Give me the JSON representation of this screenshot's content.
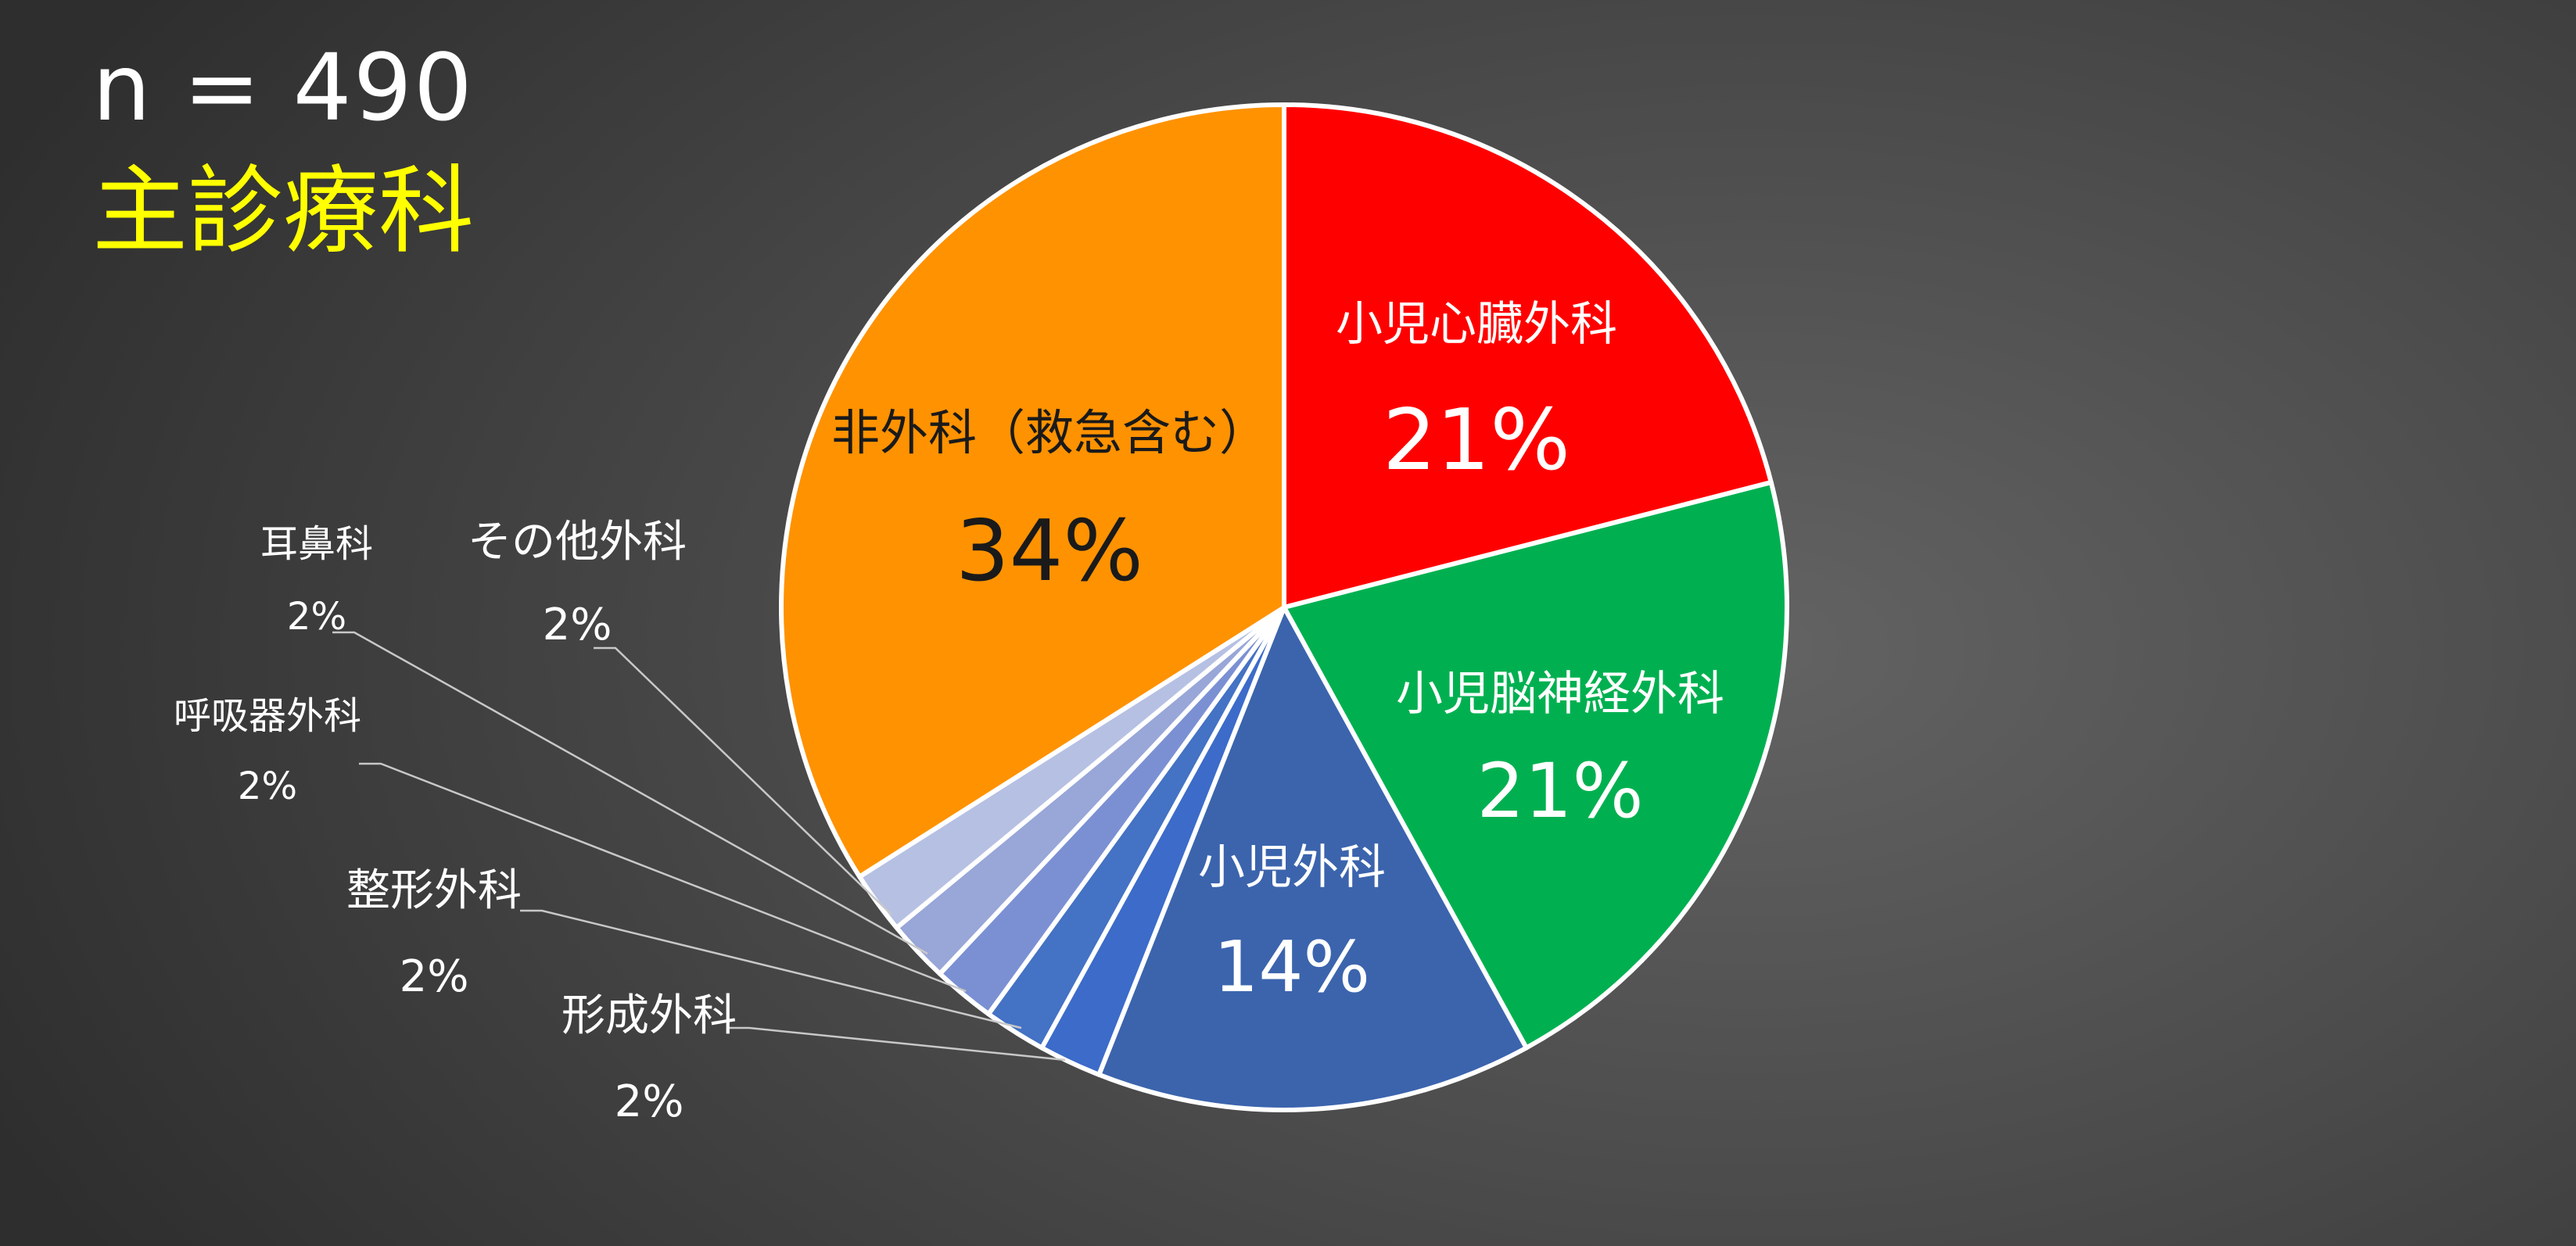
{
  "title_n": "n = 490",
  "title": "主診療科",
  "chart_data": {
    "type": "pie",
    "n": 490,
    "label_order": "clockwise from top",
    "slices": [
      {
        "label": "小児心臓外科",
        "value": 21,
        "value_label": "21%",
        "color": "#ff0000"
      },
      {
        "label": "小児脳神経外科",
        "value": 21,
        "value_label": "21%",
        "color": "#00b050"
      },
      {
        "label": "小児外科",
        "value": 14,
        "value_label": "14%",
        "color": "#3b64ad"
      },
      {
        "label": "形成外科",
        "value": 2,
        "value_label": "2%",
        "color": "#3c6bc9"
      },
      {
        "label": "整形外科",
        "value": 2,
        "value_label": "2%",
        "color": "#4472c4"
      },
      {
        "label": "呼吸器外科",
        "value": 2,
        "value_label": "2%",
        "color": "#7b90d3"
      },
      {
        "label": "耳鼻科",
        "value": 2,
        "value_label": "2%",
        "color": "#98a6d8"
      },
      {
        "label": "その他外科",
        "value": 2,
        "value_label": "2%",
        "color": "#b6c0e3"
      },
      {
        "label": "非外科（救急含む）",
        "value": 34,
        "value_label": "34%",
        "color": "#ff9200"
      }
    ],
    "legend": "none",
    "data_labels": "inside for large slices, outside with leader lines for small slices"
  }
}
